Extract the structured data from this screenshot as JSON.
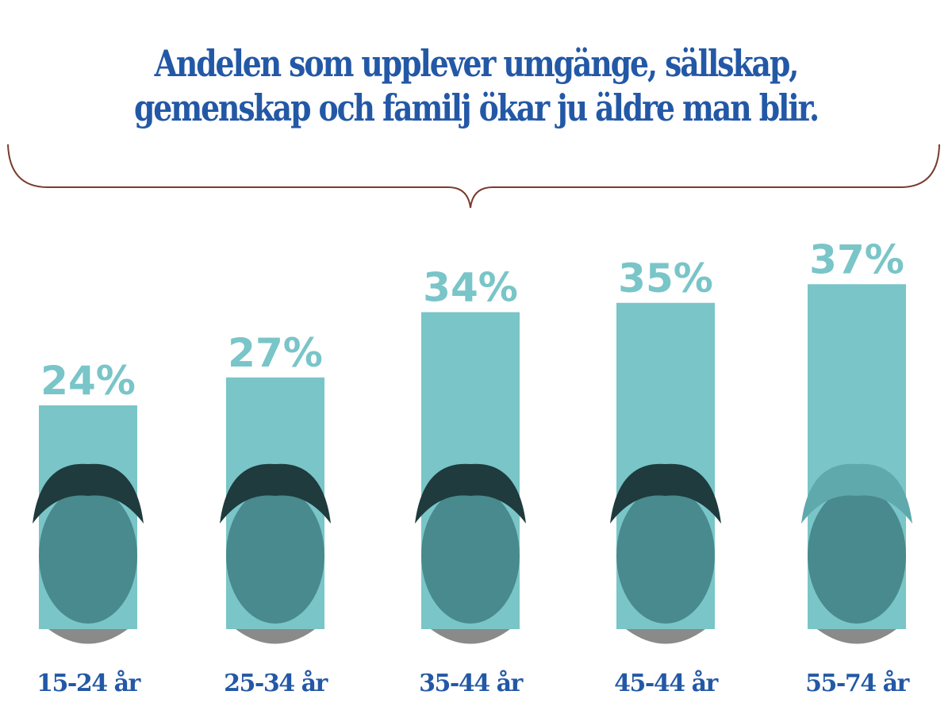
{
  "title_lines": [
    "Andelen som upplever umgänge, sällskap,",
    "gemenskap och familj ökar ju äldre man blir."
  ],
  "colors": {
    "title": "#2358a6",
    "bar": "#79c5c8",
    "value_label": "#79c5c8",
    "category_label": "#2358a6",
    "brace": "#7a3b2e"
  },
  "chart_data": {
    "type": "bar",
    "title": "Andelen som upplever umgänge, sällskap, gemenskap och familj ökar ju äldre man blir.",
    "categories": [
      "15-24 år",
      "25-34 år",
      "35-44 år",
      "45-44 år",
      "55-74 år"
    ],
    "values": [
      24,
      27,
      34,
      35,
      37
    ],
    "value_labels": [
      "24%",
      "27%",
      "34%",
      "35%",
      "37%"
    ],
    "unit": "%",
    "xlabel": "",
    "ylabel": "",
    "ylim": [
      0,
      40
    ],
    "grid": false,
    "legend": "none",
    "decorations": [
      "portrait photo of a person at the base of each bar"
    ]
  }
}
